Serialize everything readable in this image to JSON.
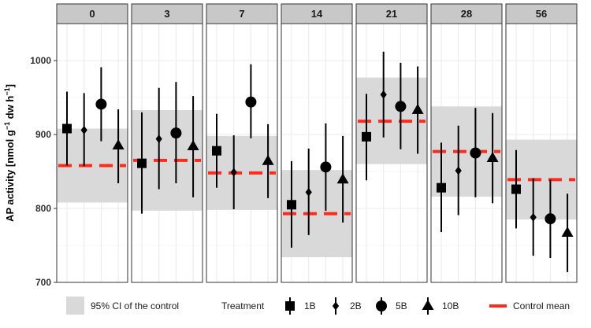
{
  "chart_data": {
    "type": "faceted_point_errorbar",
    "ylabel_parts": [
      "AP activity [nmol  g",
      "−1",
      " dw h",
      "−1",
      "]"
    ],
    "ylim": [
      700,
      1050
    ],
    "yticks": [
      700,
      800,
      900,
      1000
    ],
    "grid": true,
    "treatments": [
      "1B",
      "2B",
      "5B",
      "10B"
    ],
    "markers": [
      "square",
      "diamond",
      "circle",
      "triangle"
    ],
    "legend": {
      "ci_label": "95% CI of the control",
      "treatment_title": "Treatment",
      "control_label": "Control mean",
      "position": "bottom"
    },
    "colors": {
      "ci_band": "#d9d9d9",
      "control_line": "#ff2a1a",
      "strip": "#c8c8c8",
      "points": "#000000",
      "grid": "#ebebeb"
    },
    "facets": [
      {
        "label": "0",
        "control_mean": 858,
        "ci": [
          808,
          908
        ],
        "mean": [
          908,
          906,
          941,
          885
        ],
        "lower": [
          858,
          857,
          891,
          834
        ],
        "upper": [
          958,
          956,
          991,
          934
        ]
      },
      {
        "label": "3",
        "control_mean": 865,
        "ci": [
          797,
          933
        ],
        "mean": [
          861,
          894,
          902,
          884
        ],
        "lower": [
          793,
          826,
          834,
          815
        ],
        "upper": [
          930,
          963,
          971,
          952
        ]
      },
      {
        "label": "7",
        "control_mean": 848,
        "ci": [
          798,
          898
        ],
        "mean": [
          878,
          849,
          944,
          864
        ],
        "lower": [
          828,
          799,
          895,
          814
        ],
        "upper": [
          928,
          899,
          995,
          914
        ]
      },
      {
        "label": "14",
        "control_mean": 793,
        "ci": [
          734,
          852
        ],
        "mean": [
          805,
          822,
          856,
          839
        ],
        "lower": [
          747,
          764,
          797,
          781
        ],
        "upper": [
          864,
          881,
          915,
          898
        ]
      },
      {
        "label": "21",
        "control_mean": 918,
        "ci": [
          860,
          977
        ],
        "mean": [
          897,
          954,
          938,
          933
        ],
        "lower": [
          838,
          896,
          880,
          874
        ],
        "upper": [
          955,
          1012,
          997,
          992
        ]
      },
      {
        "label": "28",
        "control_mean": 877,
        "ci": [
          816,
          938
        ],
        "mean": [
          828,
          851,
          875,
          868
        ],
        "lower": [
          768,
          791,
          815,
          807
        ],
        "upper": [
          889,
          912,
          936,
          929
        ]
      },
      {
        "label": "56",
        "control_mean": 839,
        "ci": [
          785,
          893
        ],
        "mean": [
          826,
          788,
          786,
          767
        ],
        "lower": [
          773,
          736,
          733,
          714
        ],
        "upper": [
          879,
          841,
          839,
          820
        ]
      }
    ]
  }
}
